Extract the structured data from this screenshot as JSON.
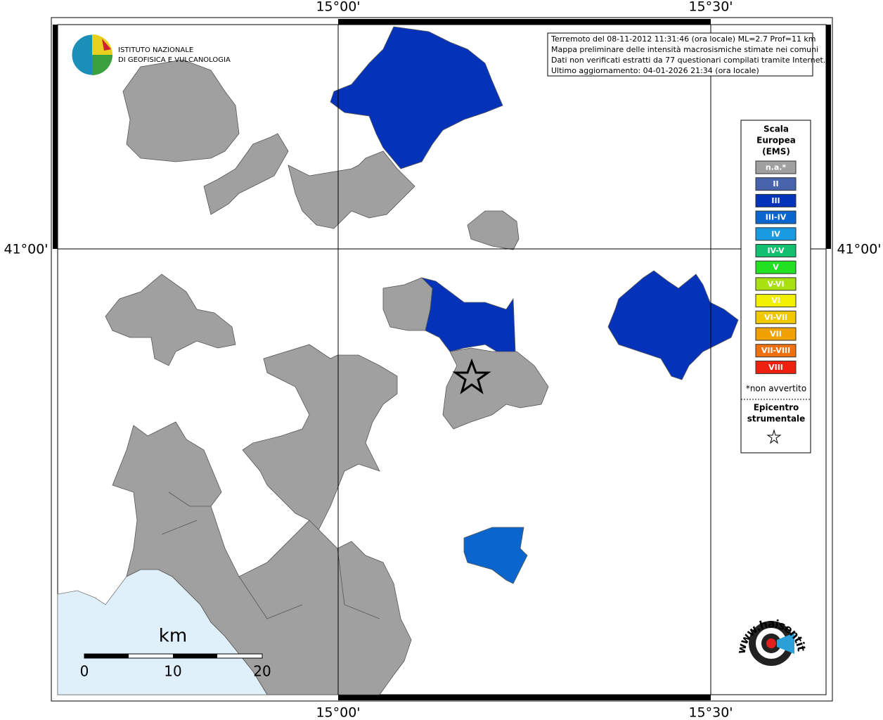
{
  "axis_labels": {
    "top": [
      "15°00'",
      "15°30'"
    ],
    "bottom": [
      "15°00'",
      "15°30'"
    ],
    "left": "41°00'",
    "right": "41°00'"
  },
  "info_box": [
    "Terremoto del 08-11-2012 11:31:46 (ora locale) ML=2.7 Prof=11 km",
    "Mappa preliminare delle intensità macrosismiche stimate nei comuni",
    "Dati non verificati estratti da 77 questionari compilati tramite Internet.",
    "Ultimo aggiornamento: 04-01-2026 21:34 (ora locale)"
  ],
  "legend": {
    "title": [
      "Scala",
      "Europea",
      "(EMS)"
    ],
    "items": [
      {
        "label": "n.a.*",
        "color": "#a0a0a0"
      },
      {
        "label": "II",
        "color": "#4663ab"
      },
      {
        "label": "III",
        "color": "#0433b9"
      },
      {
        "label": "III-IV",
        "color": "#0a66cc"
      },
      {
        "label": "IV",
        "color": "#1a9ae0"
      },
      {
        "label": "IV-V",
        "color": "#12c070"
      },
      {
        "label": "V",
        "color": "#22e022"
      },
      {
        "label": "V-VI",
        "color": "#a8e010"
      },
      {
        "label": "VI",
        "color": "#f0f000"
      },
      {
        "label": "VI-VII",
        "color": "#f0c800"
      },
      {
        "label": "VII",
        "color": "#f0a000"
      },
      {
        "label": "VII-VIII",
        "color": "#f07010"
      },
      {
        "label": "VIII",
        "color": "#f02010"
      }
    ],
    "footnote": "*non avvertito",
    "epicenter": [
      "Epicentro",
      "strumentale"
    ]
  },
  "scale_bar": {
    "unit": "km",
    "labels": [
      "0",
      "10",
      "20"
    ]
  },
  "logos": {
    "ingv": [
      "ISTITUTO NAZIONALE",
      "DI GEOFISICA E VULCANOLOGIA"
    ],
    "hsit": "www.haisentitoilterremoto.it"
  }
}
